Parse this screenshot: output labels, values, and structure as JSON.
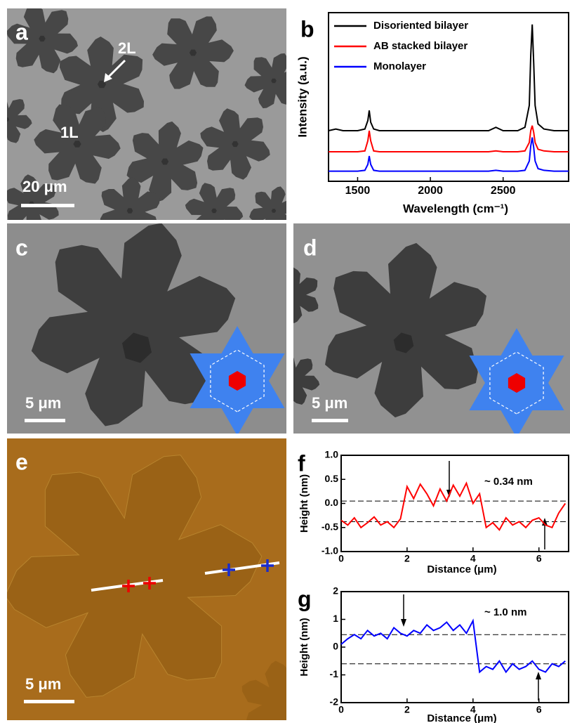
{
  "images": [
    {
      "panel_label": "a",
      "labels": [
        "2L",
        "1L"
      ],
      "scale_bar": "20 μm"
    },
    {
      "panel_label": "c",
      "scale_bar": "5 μm"
    },
    {
      "panel_label": "d",
      "scale_bar": "5 μm"
    },
    {
      "panel_label": "e",
      "scale_bar": "5 μm"
    }
  ],
  "chart_data": [
    {
      "type": "line",
      "panel_label": "b",
      "xlabel": "Wavelength (cm⁻¹)",
      "ylabel": "Intensity (a.u.)",
      "x": [
        1300,
        1350,
        1400,
        1500,
        1550,
        1570,
        1580,
        1590,
        1610,
        1650,
        1800,
        2000,
        2200,
        2400,
        2450,
        2500,
        2600,
        2650,
        2680,
        2690,
        2700,
        2710,
        2720,
        2740,
        2780,
        2850,
        2900,
        2950
      ],
      "series": [
        {
          "name": "Disoriented bilayer",
          "color": "#000000",
          "values": [
            0.3,
            0.31,
            0.3,
            0.3,
            0.31,
            0.36,
            0.42,
            0.35,
            0.31,
            0.3,
            0.3,
            0.3,
            0.3,
            0.3,
            0.32,
            0.3,
            0.3,
            0.32,
            0.45,
            0.75,
            0.93,
            0.7,
            0.45,
            0.34,
            0.31,
            0.3,
            0.3,
            0.3
          ]
        },
        {
          "name": "AB stacked bilayer",
          "color": "#ff0000",
          "values": [
            0.175,
            0.175,
            0.175,
            0.175,
            0.18,
            0.24,
            0.3,
            0.24,
            0.18,
            0.175,
            0.175,
            0.175,
            0.175,
            0.175,
            0.18,
            0.175,
            0.175,
            0.18,
            0.23,
            0.3,
            0.33,
            0.29,
            0.23,
            0.19,
            0.18,
            0.175,
            0.175,
            0.175
          ]
        },
        {
          "name": "Monolayer",
          "color": "#0000ff",
          "values": [
            0.06,
            0.06,
            0.06,
            0.06,
            0.065,
            0.1,
            0.15,
            0.1,
            0.065,
            0.06,
            0.06,
            0.06,
            0.06,
            0.06,
            0.065,
            0.06,
            0.06,
            0.065,
            0.12,
            0.21,
            0.26,
            0.2,
            0.12,
            0.075,
            0.065,
            0.06,
            0.06,
            0.06
          ]
        }
      ],
      "xlim": [
        1300,
        2950
      ],
      "xticks": [
        1500,
        2000,
        2500
      ],
      "ylim": [
        0,
        1
      ]
    },
    {
      "type": "line",
      "panel_label": "f",
      "xlabel": "Distance (μm)",
      "ylabel": "Height (nm)",
      "annotation": "~ 0.34 nm",
      "x": [
        0,
        0.2,
        0.4,
        0.6,
        0.8,
        1,
        1.2,
        1.4,
        1.6,
        1.8,
        2,
        2.2,
        2.4,
        2.6,
        2.8,
        3,
        3.2,
        3.4,
        3.6,
        3.8,
        4,
        4.2,
        4.4,
        4.6,
        4.8,
        5,
        5.2,
        5.4,
        5.6,
        5.8,
        6,
        6.2,
        6.4,
        6.6,
        6.8
      ],
      "series": [
        {
          "color": "#ff0000",
          "values": [
            -0.35,
            -0.45,
            -0.3,
            -0.5,
            -0.4,
            -0.28,
            -0.45,
            -0.38,
            -0.5,
            -0.32,
            0.35,
            0.1,
            0.4,
            0.2,
            -0.05,
            0.3,
            0.05,
            0.38,
            0.15,
            0.42,
            0.0,
            0.2,
            -0.5,
            -0.4,
            -0.55,
            -0.3,
            -0.45,
            -0.38,
            -0.5,
            -0.35,
            -0.3,
            -0.45,
            -0.5,
            -0.2,
            0.0
          ]
        }
      ],
      "reference_lines": [
        0.05,
        -0.38
      ],
      "xlim": [
        0,
        6.9
      ],
      "xticks": [
        0,
        2,
        4,
        6
      ],
      "ylim": [
        -1,
        1
      ],
      "yticks": [
        {
          "value": -1,
          "label": "-1.0"
        },
        -0.5,
        {
          "value": 0,
          "label": "0.0"
        },
        0.5,
        {
          "value": 1,
          "label": "1.0"
        }
      ]
    },
    {
      "type": "line",
      "panel_label": "g",
      "xlabel": "Distance (μm)",
      "ylabel": "Height (nm)",
      "annotation": "~ 1.0 nm",
      "x": [
        0,
        0.2,
        0.4,
        0.6,
        0.8,
        1,
        1.2,
        1.4,
        1.6,
        1.8,
        2,
        2.2,
        2.4,
        2.6,
        2.8,
        3,
        3.2,
        3.4,
        3.6,
        3.8,
        4,
        4.2,
        4.4,
        4.6,
        4.8,
        5,
        5.2,
        5.4,
        5.6,
        5.8,
        6,
        6.2,
        6.4,
        6.6,
        6.8
      ],
      "series": [
        {
          "color": "#0000ff",
          "values": [
            0.1,
            0.3,
            0.45,
            0.3,
            0.6,
            0.4,
            0.5,
            0.3,
            0.7,
            0.5,
            0.4,
            0.6,
            0.5,
            0.8,
            0.6,
            0.7,
            0.9,
            0.6,
            0.8,
            0.5,
            0.95,
            -0.9,
            -0.7,
            -0.8,
            -0.5,
            -0.9,
            -0.6,
            -0.8,
            -0.7,
            -0.5,
            -0.8,
            -0.9,
            -0.6,
            -0.7,
            -0.5
          ]
        }
      ],
      "reference_lines": [
        0.45,
        -0.6
      ],
      "xlim": [
        0,
        6.9
      ],
      "xticks": [
        0,
        2,
        4,
        6
      ],
      "ylim": [
        -2,
        2
      ],
      "yticks": [
        -2,
        -1,
        0,
        1,
        2
      ]
    }
  ]
}
